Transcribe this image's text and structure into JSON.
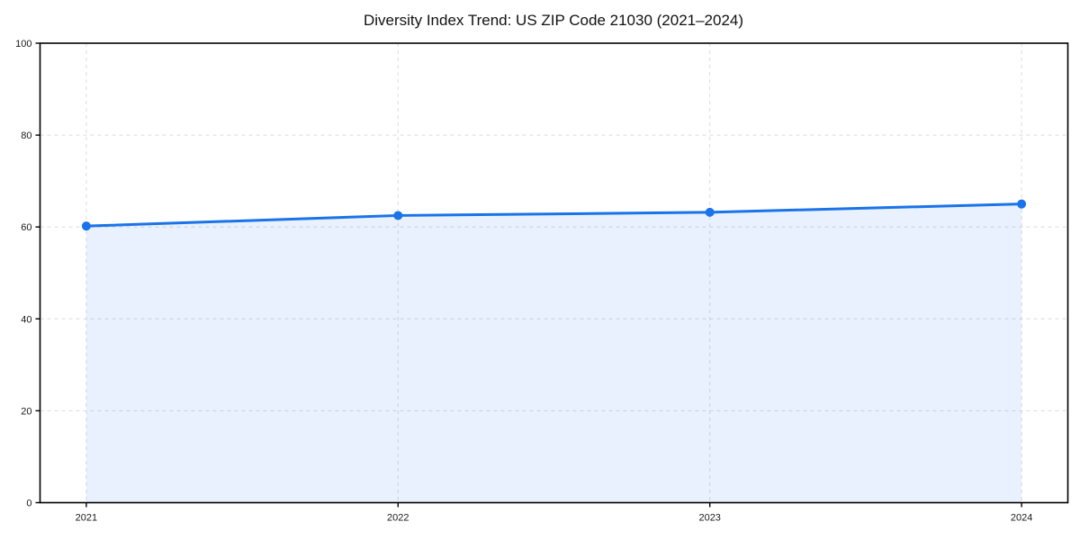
{
  "chart_data": {
    "type": "area",
    "title": "Diversity Index Trend: US ZIP Code 21030 (2021–2024)",
    "x": [
      2021,
      2022,
      2023,
      2024
    ],
    "xticks": [
      "2021",
      "2022",
      "2023",
      "2024"
    ],
    "series": [
      {
        "name": "Diversity Index",
        "values": [
          60.2,
          62.5,
          63.2,
          65.0
        ]
      }
    ],
    "xlabel": "",
    "ylabel": "",
    "ylim": [
      0,
      100
    ],
    "yticks": [
      0,
      20,
      40,
      60,
      80,
      100
    ],
    "grid": "dashed, both axes",
    "legend": "none",
    "colors": {
      "line": "#1a73e8",
      "marker": "#1a73e8",
      "fill": "rgba(26,115,232,0.10)",
      "grid": "#dcdcdc",
      "axis": "#000000",
      "tick_text": "#1a1a1a",
      "background": "#ffffff"
    }
  }
}
